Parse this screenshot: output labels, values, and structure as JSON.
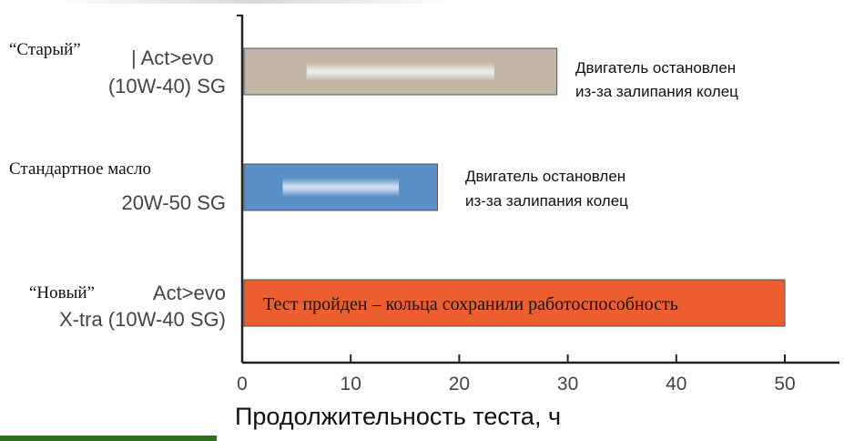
{
  "colors": {
    "old_actevo": "#c2b7a7",
    "standard": "#5b8fc8",
    "new_actevo_xtra": "#ec5e30",
    "axis": "#222222",
    "green_strip": "#2f6e1f"
  },
  "chart_data": {
    "type": "bar",
    "orientation": "horizontal",
    "xlabel": "Продолжительность теста, ч",
    "ylabel": "",
    "xlim": [
      0,
      50
    ],
    "xticks": [
      0,
      10,
      20,
      30,
      40,
      50
    ],
    "grid": false,
    "bars": [
      {
        "id": "old",
        "label_lines": [
          {
            "text": "“Старый”",
            "serif": true
          },
          {
            "text": "| Act>evo",
            "serif": false
          },
          {
            "text": "(10W-40) SG",
            "serif": false
          }
        ],
        "value": 29,
        "color": "#c2b7a7",
        "annotation": [
          "Двигатель остановлен",
          "из-за залипания колец"
        ],
        "annotation_position": "outside"
      },
      {
        "id": "standard",
        "label_lines": [
          {
            "text": "Стандартное масло",
            "serif": true
          },
          {
            "text": "20W-50 SG",
            "serif": false
          }
        ],
        "value": 18,
        "color": "#5b8fc8",
        "annotation": [
          "Двигатель остановлен",
          "из-за залипания колец"
        ],
        "annotation_position": "outside"
      },
      {
        "id": "new",
        "label_lines": [
          {
            "text": "“Новый”",
            "serif": true
          },
          {
            "text": "Act>evo",
            "serif": false
          },
          {
            "text": "X-tra (10W-40 SG)",
            "serif": false
          }
        ],
        "value": 50,
        "color": "#ec5e30",
        "annotation": [
          "Тест пройден – кольца сохранили работоспособность"
        ],
        "annotation_position": "inside"
      }
    ]
  }
}
